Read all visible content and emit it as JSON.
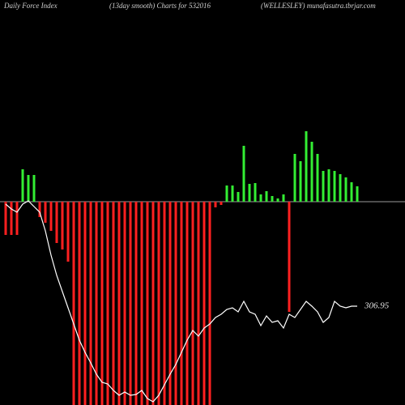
{
  "chart_data": {
    "type": "force-index",
    "title": "Daily Force  Index",
    "subtitle": "(13day smooth) Charts for 532016",
    "source": "(WELLESLEY) munafasutra.tbrjar.com",
    "ylim": [
      -251,
      249
    ],
    "y2lim": [
      294.75,
      344.75
    ],
    "zero_line": true,
    "zero_line_color": "#9a9a9a",
    "series": [
      {
        "type": "bar",
        "up_color": "#33ee33",
        "down_color": "#ff2020",
        "values": [
          -41,
          -41,
          -41,
          40,
          33,
          33,
          -19,
          -26,
          -36,
          -51,
          -59,
          -74,
          -251,
          -251,
          -251,
          -251,
          -251,
          -251,
          -251,
          -251,
          -251,
          -251,
          -251,
          -251,
          -251,
          -251,
          -251,
          -251,
          -251,
          -251,
          -251,
          -251,
          -251,
          -251,
          -251,
          -251,
          -251,
          -7,
          -4,
          20,
          20,
          12,
          69,
          22,
          23,
          9,
          13,
          7,
          4,
          9,
          -136,
          59,
          50,
          87,
          74,
          59,
          38,
          40,
          38,
          34,
          30,
          24,
          19
        ]
      },
      {
        "type": "line",
        "axis": "y2",
        "color": "#ffffff",
        "values": [
          319.55,
          318.95,
          318.55,
          319.55,
          319.95,
          319.25,
          318.55,
          316.25,
          313.25,
          310.75,
          308.75,
          306.75,
          304.75,
          302.75,
          301.25,
          299.95,
          298.55,
          297.55,
          297.35,
          296.55,
          295.95,
          296.35,
          295.95,
          296.05,
          296.55,
          295.55,
          295.15,
          295.95,
          297.25,
          298.55,
          299.75,
          301.25,
          302.75,
          303.95,
          303.25,
          304.25,
          304.75,
          305.55,
          305.95,
          306.55,
          306.75,
          306.25,
          307.55,
          306.25,
          305.95,
          304.55,
          305.75,
          304.95,
          305.15,
          304.25,
          305.95,
          305.55,
          306.55,
          307.55,
          306.95,
          306.25,
          304.95,
          305.55,
          307.55,
          306.95,
          306.75,
          306.95,
          306.95
        ]
      }
    ]
  }
}
